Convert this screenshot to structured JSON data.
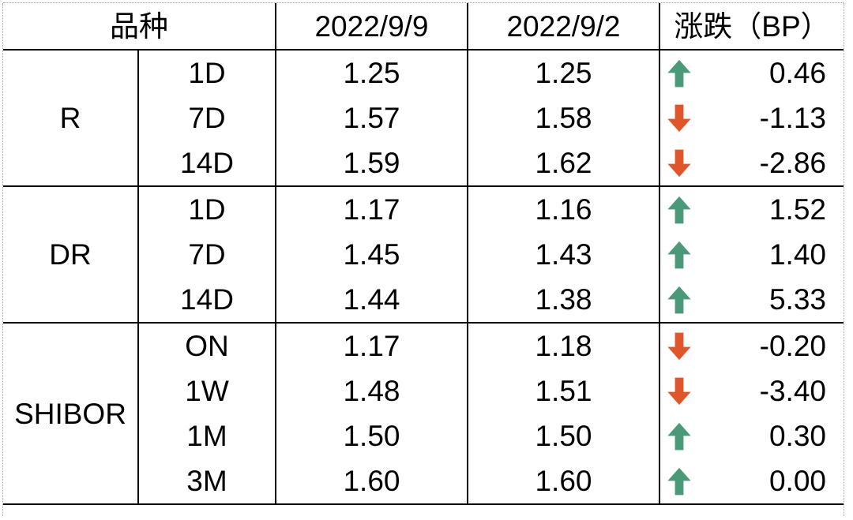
{
  "header": {
    "variety": "品种",
    "date1": "2022/9/9",
    "date2": "2022/9/2",
    "change": "涨跌（BP）"
  },
  "colors": {
    "up": "#4a9a7a",
    "down": "#e0552a"
  },
  "chart_data": {
    "type": "table",
    "columns": [
      "品种",
      "",
      "2022/9/9",
      "2022/9/2",
      "涨跌（BP）"
    ],
    "groups": [
      {
        "name": "R",
        "rows": [
          {
            "tenor": "1D",
            "v1": "1.25",
            "v2": "1.25",
            "change": "0.46",
            "direction": "up"
          },
          {
            "tenor": "7D",
            "v1": "1.57",
            "v2": "1.58",
            "change": "-1.13",
            "direction": "down"
          },
          {
            "tenor": "14D",
            "v1": "1.59",
            "v2": "1.62",
            "change": "-2.86",
            "direction": "down"
          }
        ]
      },
      {
        "name": "DR",
        "rows": [
          {
            "tenor": "1D",
            "v1": "1.17",
            "v2": "1.16",
            "change": "1.52",
            "direction": "up"
          },
          {
            "tenor": "7D",
            "v1": "1.45",
            "v2": "1.43",
            "change": "1.40",
            "direction": "up"
          },
          {
            "tenor": "14D",
            "v1": "1.44",
            "v2": "1.38",
            "change": "5.33",
            "direction": "up"
          }
        ]
      },
      {
        "name": "SHIBOR",
        "rows": [
          {
            "tenor": "ON",
            "v1": "1.17",
            "v2": "1.18",
            "change": "-0.20",
            "direction": "down"
          },
          {
            "tenor": "1W",
            "v1": "1.48",
            "v2": "1.51",
            "change": "-3.40",
            "direction": "down"
          },
          {
            "tenor": "1M",
            "v1": "1.50",
            "v2": "1.50",
            "change": "0.30",
            "direction": "up"
          },
          {
            "tenor": "3M",
            "v1": "1.60",
            "v2": "1.60",
            "change": "0.00",
            "direction": "up"
          }
        ]
      }
    ]
  }
}
